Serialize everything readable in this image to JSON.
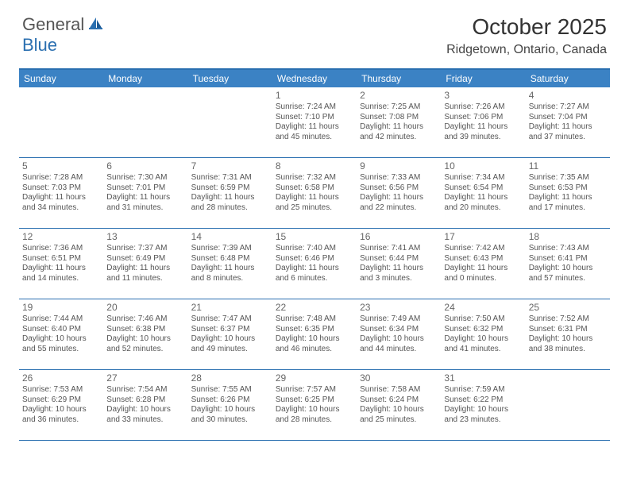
{
  "brand": {
    "general": "General",
    "blue": "Blue"
  },
  "title": "October 2025",
  "location": "Ridgetown, Ontario, Canada",
  "colors": {
    "header_bg": "#3b82c4",
    "border": "#2a6fb0",
    "text": "#555555",
    "title": "#333333"
  },
  "day_labels": [
    "Sunday",
    "Monday",
    "Tuesday",
    "Wednesday",
    "Thursday",
    "Friday",
    "Saturday"
  ],
  "weeks": [
    [
      null,
      null,
      null,
      {
        "n": "1",
        "sr": "7:24 AM",
        "ss": "7:10 PM",
        "dl": "11 hours and 45 minutes."
      },
      {
        "n": "2",
        "sr": "7:25 AM",
        "ss": "7:08 PM",
        "dl": "11 hours and 42 minutes."
      },
      {
        "n": "3",
        "sr": "7:26 AM",
        "ss": "7:06 PM",
        "dl": "11 hours and 39 minutes."
      },
      {
        "n": "4",
        "sr": "7:27 AM",
        "ss": "7:04 PM",
        "dl": "11 hours and 37 minutes."
      }
    ],
    [
      {
        "n": "5",
        "sr": "7:28 AM",
        "ss": "7:03 PM",
        "dl": "11 hours and 34 minutes."
      },
      {
        "n": "6",
        "sr": "7:30 AM",
        "ss": "7:01 PM",
        "dl": "11 hours and 31 minutes."
      },
      {
        "n": "7",
        "sr": "7:31 AM",
        "ss": "6:59 PM",
        "dl": "11 hours and 28 minutes."
      },
      {
        "n": "8",
        "sr": "7:32 AM",
        "ss": "6:58 PM",
        "dl": "11 hours and 25 minutes."
      },
      {
        "n": "9",
        "sr": "7:33 AM",
        "ss": "6:56 PM",
        "dl": "11 hours and 22 minutes."
      },
      {
        "n": "10",
        "sr": "7:34 AM",
        "ss": "6:54 PM",
        "dl": "11 hours and 20 minutes."
      },
      {
        "n": "11",
        "sr": "7:35 AM",
        "ss": "6:53 PM",
        "dl": "11 hours and 17 minutes."
      }
    ],
    [
      {
        "n": "12",
        "sr": "7:36 AM",
        "ss": "6:51 PM",
        "dl": "11 hours and 14 minutes."
      },
      {
        "n": "13",
        "sr": "7:37 AM",
        "ss": "6:49 PM",
        "dl": "11 hours and 11 minutes."
      },
      {
        "n": "14",
        "sr": "7:39 AM",
        "ss": "6:48 PM",
        "dl": "11 hours and 8 minutes."
      },
      {
        "n": "15",
        "sr": "7:40 AM",
        "ss": "6:46 PM",
        "dl": "11 hours and 6 minutes."
      },
      {
        "n": "16",
        "sr": "7:41 AM",
        "ss": "6:44 PM",
        "dl": "11 hours and 3 minutes."
      },
      {
        "n": "17",
        "sr": "7:42 AM",
        "ss": "6:43 PM",
        "dl": "11 hours and 0 minutes."
      },
      {
        "n": "18",
        "sr": "7:43 AM",
        "ss": "6:41 PM",
        "dl": "10 hours and 57 minutes."
      }
    ],
    [
      {
        "n": "19",
        "sr": "7:44 AM",
        "ss": "6:40 PM",
        "dl": "10 hours and 55 minutes."
      },
      {
        "n": "20",
        "sr": "7:46 AM",
        "ss": "6:38 PM",
        "dl": "10 hours and 52 minutes."
      },
      {
        "n": "21",
        "sr": "7:47 AM",
        "ss": "6:37 PM",
        "dl": "10 hours and 49 minutes."
      },
      {
        "n": "22",
        "sr": "7:48 AM",
        "ss": "6:35 PM",
        "dl": "10 hours and 46 minutes."
      },
      {
        "n": "23",
        "sr": "7:49 AM",
        "ss": "6:34 PM",
        "dl": "10 hours and 44 minutes."
      },
      {
        "n": "24",
        "sr": "7:50 AM",
        "ss": "6:32 PM",
        "dl": "10 hours and 41 minutes."
      },
      {
        "n": "25",
        "sr": "7:52 AM",
        "ss": "6:31 PM",
        "dl": "10 hours and 38 minutes."
      }
    ],
    [
      {
        "n": "26",
        "sr": "7:53 AM",
        "ss": "6:29 PM",
        "dl": "10 hours and 36 minutes."
      },
      {
        "n": "27",
        "sr": "7:54 AM",
        "ss": "6:28 PM",
        "dl": "10 hours and 33 minutes."
      },
      {
        "n": "28",
        "sr": "7:55 AM",
        "ss": "6:26 PM",
        "dl": "10 hours and 30 minutes."
      },
      {
        "n": "29",
        "sr": "7:57 AM",
        "ss": "6:25 PM",
        "dl": "10 hours and 28 minutes."
      },
      {
        "n": "30",
        "sr": "7:58 AM",
        "ss": "6:24 PM",
        "dl": "10 hours and 25 minutes."
      },
      {
        "n": "31",
        "sr": "7:59 AM",
        "ss": "6:22 PM",
        "dl": "10 hours and 23 minutes."
      },
      null
    ]
  ],
  "labels": {
    "sunrise": "Sunrise:",
    "sunset": "Sunset:",
    "daylight": "Daylight:"
  }
}
